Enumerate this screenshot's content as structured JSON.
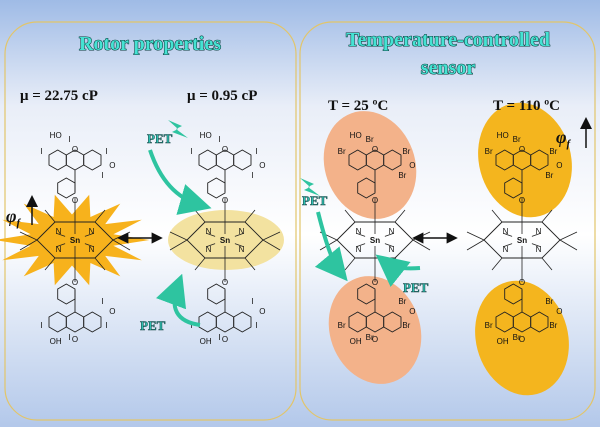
{
  "colors": {
    "accent_text": "#45e3d3",
    "panel_border": "#e2c56a",
    "starburst": "#f7b21c",
    "ellipse_pale": "#f3e2a0",
    "ellipse_orange": "#f3b28a",
    "ellipse_gold": "#f4b51e",
    "pet_arrow": "#2ec4a0"
  },
  "left_panel": {
    "title": "Rotor properties",
    "conditions": [
      "μ = 22.75 cP",
      "μ = 0.95 cP"
    ],
    "pet_labels": [
      "PET",
      "PET"
    ],
    "quantum_yield_symbol": "φ",
    "quantum_yield_subscript": "f"
  },
  "right_panel": {
    "title_line1": "Temperature-controlled",
    "title_line2": "sensor",
    "conditions": [
      "T = 25 ºC",
      "T = 110 ºC"
    ],
    "pet_labels": [
      "PET",
      "PET"
    ],
    "quantum_yield_symbol": "φ",
    "quantum_yield_subscript": "f"
  },
  "molecules": {
    "metal": "Sn",
    "nitrogen": "N",
    "iodo_dye": {
      "hydroxyl": "HO",
      "halogen": "I",
      "oxygen": "O"
    },
    "bromo_dye": {
      "hydroxyl": "HO",
      "halogen": "Br",
      "oxygen": "O"
    },
    "lower_hydroxyl": "OH"
  },
  "icons": [
    "double-arrow-icon",
    "lightning-icon",
    "curved-arrow-icon",
    "up-arrow-icon"
  ]
}
